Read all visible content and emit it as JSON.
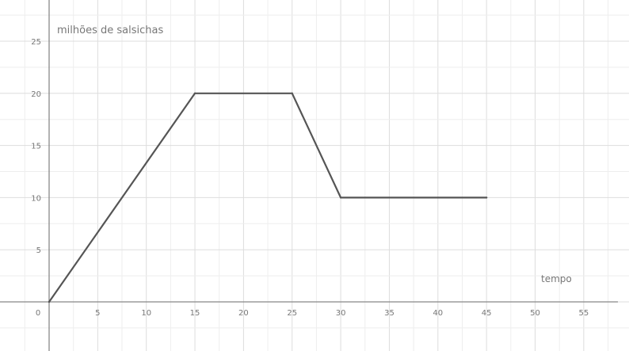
{
  "chart_data": {
    "type": "line",
    "title": "",
    "ylabel": "milhões de salsichas",
    "xlabel": "tempo",
    "x_ticks": [
      0,
      5,
      10,
      15,
      20,
      25,
      30,
      35,
      40,
      45,
      50,
      55
    ],
    "y_ticks": [
      5,
      10,
      15,
      20,
      25
    ],
    "xlim": [
      0,
      58
    ],
    "ylim": [
      -4.5,
      28
    ],
    "grid": true,
    "series": [
      {
        "x": [
          0,
          15,
          25,
          30,
          45
        ],
        "y": [
          0,
          20,
          20,
          10,
          10
        ],
        "color": "#555555"
      }
    ]
  }
}
